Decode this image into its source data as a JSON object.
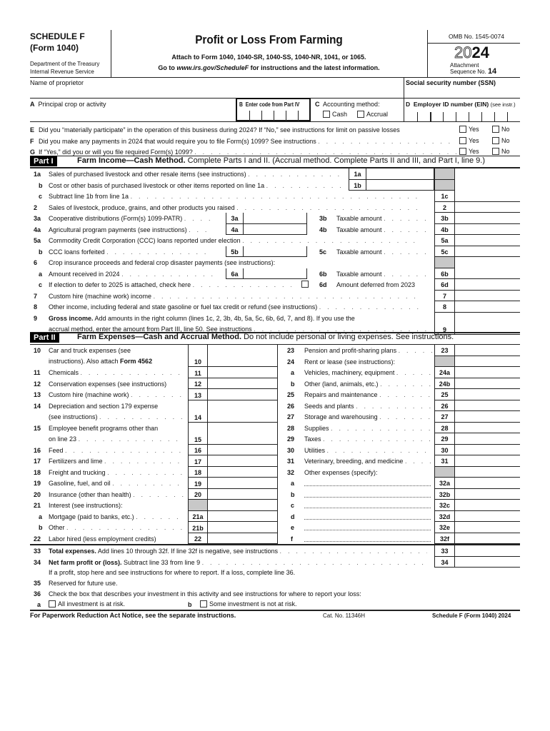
{
  "header": {
    "schedule": "SCHEDULE F",
    "form": "(Form 1040)",
    "dept1": "Department of the Treasury",
    "dept2": "Internal Revenue Service",
    "title": "Profit or Loss From Farming",
    "attach": "Attach to Form 1040, 1040-SR, 1040-SS, 1040-NR, 1041, or 1065.",
    "goto_pre": "Go to ",
    "goto_url": "www.irs.gov/ScheduleF",
    "goto_post": " for instructions and the latest information.",
    "omb": "OMB No. 1545-0074",
    "year_outline": "20",
    "year_bold": "24",
    "attachment": "Attachment",
    "sequence": "Sequence No.",
    "seq_no": "14"
  },
  "ident": {
    "name_label": "Name of proprietor",
    "ssn_label": "Social security number (SSN)",
    "a_letter": "A",
    "a_label": "Principal crop or activity",
    "b_letter": "B",
    "b_label": "Enter code from Part IV",
    "c_letter": "C",
    "c_label": "Accounting method:",
    "cash": "Cash",
    "accrual": "Accrual",
    "d_letter": "D",
    "d_label": "Employer ID number (EIN)",
    "d_note": "(see instr.)"
  },
  "questions": [
    {
      "letter": "E",
      "text": "Did you “materially participate” in the operation of this business during 2024? If “No,” see instructions for limit on passive losses",
      "yes": "Yes",
      "no": "No"
    },
    {
      "letter": "F",
      "text": "Did you make any payments in 2024 that would require you to file Form(s) 1099? See instructions",
      "yes": "Yes",
      "no": "No"
    },
    {
      "letter": "G",
      "text": "If “Yes,” did you or will you file required Form(s) 1099?",
      "yes": "Yes",
      "no": "No"
    }
  ],
  "part1": {
    "label": "Part I",
    "title": "Farm Income—Cash Method.",
    "desc": " Complete Parts I and II. (Accrual method. Complete Parts II and III, and Part I, line 9.)",
    "lines": [
      {
        "num": "1a",
        "text": "Sales of purchased livestock and other resale items (see instructions)",
        "box": "1a",
        "boxpos": "far",
        "shade": true
      },
      {
        "num": "b",
        "text": "Cost or other basis of purchased livestock or other items reported on line 1a",
        "box": "1b",
        "boxpos": "far",
        "shade": true
      },
      {
        "num": "c",
        "text": "Subtract line 1b from line 1a",
        "right": "1c"
      },
      {
        "num": "2",
        "text": "Sales of livestock, produce, grains, and other products you raised",
        "right": "2"
      },
      {
        "num": "3a",
        "text": "Cooperative distributions (Form(s) 1099-PATR)",
        "box": "3a",
        "mid_num": "3b",
        "mid_text": "Taxable amount",
        "right": "3b"
      },
      {
        "num": "4a",
        "text": "Agricultural program payments (see instructions)",
        "box": "4a",
        "mid_num": "4b",
        "mid_text": "Taxable amount",
        "right": "4b"
      },
      {
        "num": "5a",
        "text": "Commodity Credit Corporation (CCC) loans reported under election",
        "right": "5a"
      },
      {
        "num": "b",
        "text": "CCC loans forfeited",
        "box": "5b",
        "mid_num": "5c",
        "mid_text": "Taxable amount",
        "right": "5c"
      },
      {
        "num": "6",
        "text": "Crop insurance proceeds and federal crop disaster payments (see instructions):",
        "shade": true
      },
      {
        "num": "a",
        "text": "Amount received in 2024",
        "box": "6a",
        "mid_num": "6b",
        "mid_text": "Taxable amount",
        "right": "6b"
      },
      {
        "num": "c",
        "text": "If election to defer to 2025 is attached, check here",
        "check": true,
        "mid_num": "6d",
        "mid_text": "Amount deferred from 2023",
        "right": "6d"
      },
      {
        "num": "7",
        "text": "Custom hire (machine work) income",
        "right": "7"
      },
      {
        "num": "8",
        "text": "Other income, including federal and state gasoline or fuel tax credit or refund (see instructions)",
        "right": "8"
      }
    ],
    "line9": {
      "num": "9",
      "bold": "Gross income.",
      "text": " Add amounts in the right column (lines 1c, 2, 3b, 4b, 5a, 5c, 6b, 6d, 7, and 8). If you use the",
      "text2": "accrual method, enter the amount from Part III, line 50. See instructions",
      "right": "9"
    }
  },
  "part2": {
    "label": "Part II",
    "title": "Farm Expenses—Cash and Accrual Method.",
    "desc": " Do not include personal or living expenses. See instructions.",
    "left": [
      {
        "num": "10",
        "text": "Car and truck expenses (see",
        "text2pre": "instructions). Also attach ",
        "text2bold": "Form 4562",
        "code": "10",
        "two": true
      },
      {
        "num": "11",
        "text": "Chemicals",
        "code": "11"
      },
      {
        "num": "12",
        "text": "Conservation expenses (see instructions)",
        "code": "12"
      },
      {
        "num": "13",
        "text": "Custom hire (machine work)",
        "code": "13"
      },
      {
        "num": "14",
        "text": "Depreciation and section 179 expense",
        "text2pre": "(see instructions)",
        "code": "14",
        "two": true
      },
      {
        "num": "15",
        "text": "Employee benefit programs other than",
        "text2pre": "on line 23",
        "code": "15",
        "two": true
      },
      {
        "num": "16",
        "text": "Feed",
        "code": "16"
      },
      {
        "num": "17",
        "text": "Fertilizers and lime",
        "code": "17"
      },
      {
        "num": "18",
        "text": "Freight and trucking",
        "code": "18"
      },
      {
        "num": "19",
        "text": "Gasoline, fuel, and oil",
        "code": "19"
      },
      {
        "num": "20",
        "text": "Insurance (other than health)",
        "code": "20"
      },
      {
        "num": "21",
        "text": "Interest (see instructions):",
        "shade": true
      },
      {
        "num": "a",
        "text": "Mortgage (paid to banks, etc.)",
        "code": "21a"
      },
      {
        "num": "b",
        "text": "Other",
        "code": "21b"
      },
      {
        "num": "22",
        "text": "Labor hired (less employment credits)",
        "code": "22"
      }
    ],
    "right": [
      {
        "num": "23",
        "text": "Pension and profit-sharing plans",
        "code": "23"
      },
      {
        "num": "24",
        "text": "Rent or lease (see instructions):",
        "shade": true
      },
      {
        "num": "a",
        "text": "Vehicles, machinery, equipment",
        "code": "24a"
      },
      {
        "num": "b",
        "text": "Other (land, animals, etc.)",
        "code": "24b"
      },
      {
        "num": "25",
        "text": "Repairs and maintenance",
        "code": "25"
      },
      {
        "num": "26",
        "text": "Seeds and plants",
        "code": "26"
      },
      {
        "num": "27",
        "text": "Storage and warehousing",
        "code": "27"
      },
      {
        "num": "28",
        "text": "Supplies",
        "code": "28"
      },
      {
        "num": "29",
        "text": "Taxes",
        "code": "29"
      },
      {
        "num": "30",
        "text": "Utilities",
        "code": "30"
      },
      {
        "num": "31",
        "text": "Veterinary, breeding, and medicine",
        "code": "31"
      },
      {
        "num": "32",
        "text": "Other expenses (specify):",
        "shade": true
      },
      {
        "num": "a",
        "text": "",
        "code": "32a",
        "blank": true
      },
      {
        "num": "b",
        "text": "",
        "code": "32b",
        "blank": true
      },
      {
        "num": "c",
        "text": "",
        "code": "32c",
        "blank": true
      },
      {
        "num": "d",
        "text": "",
        "code": "32d",
        "blank": true
      },
      {
        "num": "e",
        "text": "",
        "code": "32e",
        "blank": true
      },
      {
        "num": "f",
        "text": "",
        "code": "32f"
      }
    ]
  },
  "totals": {
    "l33_num": "33",
    "l33_bold": "Total expenses.",
    "l33_text": " Add lines 10 through 32f. If line 32f is negative, see instructions",
    "l33_code": "33",
    "l34_num": "34",
    "l34_bold": "Net farm profit or (loss).",
    "l34_text": " Subtract line 33 from line 9",
    "l34_code": "34",
    "l34_note": "If a profit, stop here and see instructions for where to report. If a loss, complete line 36.",
    "l35_num": "35",
    "l35_text": "Reserved for future use.",
    "l36_num": "36",
    "l36_text": "Check the box that describes your investment in this activity and see instructions for where to report your loss:",
    "l36a": "a",
    "l36a_text": "All investment is at risk.",
    "l36b": "b",
    "l36b_text": "Some investment is not at risk."
  },
  "footer": {
    "notice": "For Paperwork Reduction Act Notice, see the separate instructions.",
    "cat": "Cat. No. 11346H",
    "form": "Schedule F (Form 1040) 2024"
  }
}
